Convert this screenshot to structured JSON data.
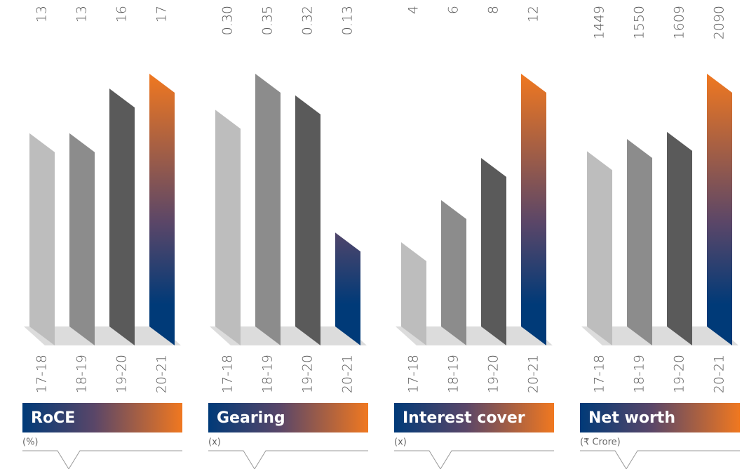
{
  "chart_data": [
    {
      "type": "bar",
      "title": "RoCE",
      "unit": "(%)",
      "categories": [
        "17-18",
        "18-19",
        "19-20",
        "20-21"
      ],
      "values": [
        13,
        13,
        16,
        17
      ],
      "colors": [
        "#bdbdbd",
        "#8c8c8c",
        "#5a5a5a"
      ],
      "highlight_gradient": [
        "#f07820",
        "#003a78"
      ]
    },
    {
      "type": "bar",
      "title": "Gearing",
      "unit": "(x)",
      "categories": [
        "17-18",
        "18-19",
        "19-20",
        "20-21"
      ],
      "values": [
        0.3,
        0.35,
        0.32,
        0.13
      ],
      "value_labels": [
        "0.30",
        "0.35",
        "0.32",
        "0.13"
      ],
      "colors": [
        "#bdbdbd",
        "#8c8c8c",
        "#5a5a5a"
      ],
      "highlight_gradient": [
        "#f07820",
        "#003a78"
      ]
    },
    {
      "type": "bar",
      "title": "Interest cover",
      "unit": "(x)",
      "categories": [
        "17-18",
        "18-19",
        "19-20",
        "20-21"
      ],
      "values": [
        4,
        6,
        8,
        12
      ],
      "colors": [
        "#bdbdbd",
        "#8c8c8c",
        "#5a5a5a"
      ],
      "highlight_gradient": [
        "#f07820",
        "#003a78"
      ]
    },
    {
      "type": "bar",
      "title": "Net worth",
      "unit": "(₹ Crore)",
      "categories": [
        "17-18",
        "18-19",
        "19-20",
        "20-21"
      ],
      "values": [
        1449,
        1550,
        1609,
        2090
      ],
      "colors": [
        "#bdbdbd",
        "#8c8c8c",
        "#5a5a5a"
      ],
      "highlight_gradient": [
        "#f07820",
        "#003a78"
      ]
    }
  ]
}
